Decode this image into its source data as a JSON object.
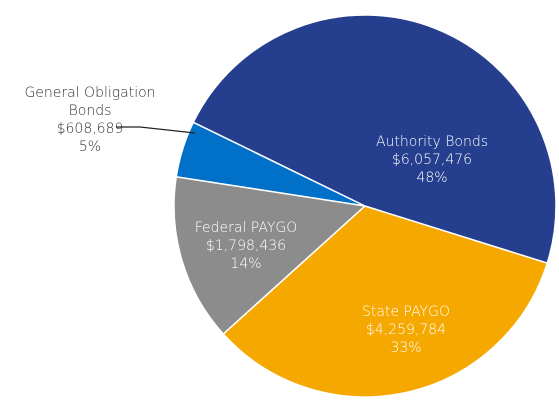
{
  "chart_data": {
    "type": "pie",
    "categories": [
      "Authority Bonds",
      "State PAYGO",
      "Federal PAYGO",
      "General Obligation Bonds"
    ],
    "values": [
      6057476,
      4259784,
      1798436,
      608689
    ],
    "value_labels": [
      "$6,057,476",
      "$4,259,784",
      "$1,798,436",
      "$608,689"
    ],
    "percents": [
      48,
      33,
      14,
      5
    ],
    "percent_labels": [
      "48%",
      "33%",
      "14%",
      "5%"
    ],
    "colors": [
      "#253f8e",
      "#f5a800",
      "#8c8c8c",
      "#0070c8"
    ]
  }
}
